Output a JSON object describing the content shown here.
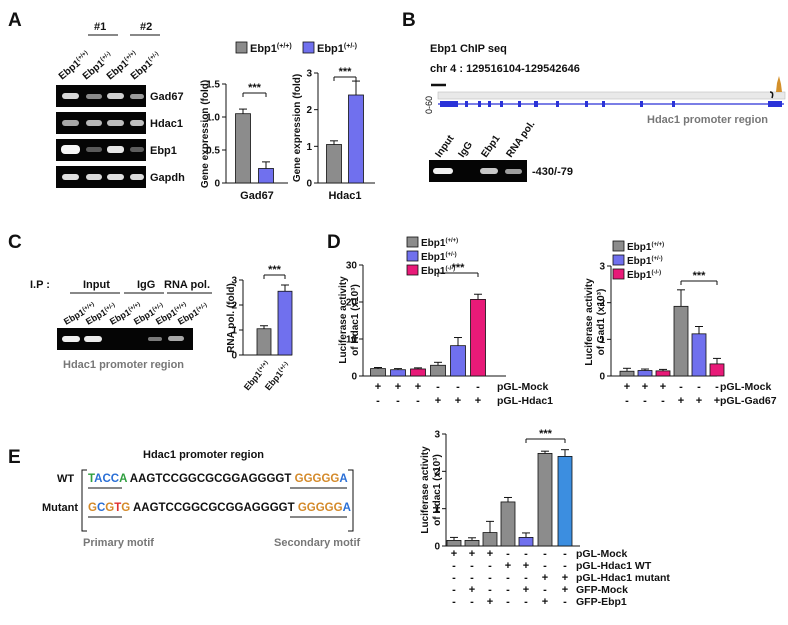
{
  "panels": {
    "A": "A",
    "B": "B",
    "C": "C",
    "D": "D",
    "E": "E"
  },
  "colors": {
    "grey": "#8c8c8c",
    "blue": "#7070ee",
    "pink": "#e81a78",
    "lightblue": "#3c8ee0",
    "gel": "#050505",
    "band": "#ffffff"
  },
  "panelA": {
    "groups": [
      "#1",
      "#2"
    ],
    "lanes": [
      "Ebp1(+/+)",
      "Ebp1(+/-)",
      "Ebp1(+/+)",
      "Ebp1(+/-)"
    ],
    "lane_main": [
      "Ebp1",
      "Ebp1",
      "Ebp1",
      "Ebp1"
    ],
    "lane_sup": [
      "(+/+)",
      "(+/-)",
      "(+/+)",
      "(+/-)"
    ],
    "blots": [
      "Gad67",
      "Hdac1",
      "Ebp1",
      "Gapdh"
    ],
    "legend": [
      {
        "name": "Ebp1",
        "sup": "(+/+)"
      },
      {
        "name": "Ebp1",
        "sup": "(+/-)"
      }
    ],
    "sig": "***"
  },
  "panelB": {
    "title": "Ebp1 ChIP seq",
    "locus": "chr 4 : 129516104-129542646",
    "range": "0-60",
    "region": "Hdac1 promoter region",
    "lanes": [
      "Input",
      "IgG",
      "Ebp1",
      "RNA pol."
    ],
    "amplicon": "-430/-79"
  },
  "panelC": {
    "ip": "I.P :",
    "groups": [
      "Input",
      "IgG",
      "RNA pol."
    ],
    "lane_main": [
      "Ebp1",
      "Ebp1",
      "Ebp1",
      "Ebp1",
      "Ebp1",
      "Ebp1"
    ],
    "lane_sup": [
      "(+/+)",
      "(+/-)",
      "(+/+)",
      "(+/-)",
      "(+/+)",
      "(+/-)"
    ],
    "region": "Hdac1 promoter region",
    "sig": "***"
  },
  "panelD": {
    "legend": [
      {
        "name": "Ebp1",
        "sup": "(+/+)"
      },
      {
        "name": "Ebp1",
        "sup": "(+/-)"
      },
      {
        "name": "Ebp1",
        "sup": "(-/-)"
      }
    ],
    "left_rows": [
      {
        "label": "pGL-Mock",
        "signs": [
          "+",
          "+",
          "+",
          "-",
          "-",
          "-"
        ]
      },
      {
        "label": "pGL-Hdac1",
        "signs": [
          "-",
          "-",
          "-",
          "+",
          "+",
          "+"
        ]
      }
    ],
    "right_rows": [
      {
        "label": "pGL-Mock",
        "signs": [
          "+",
          "+",
          "+",
          "-",
          "-",
          "-"
        ]
      },
      {
        "label": "pGL-Gad67",
        "signs": [
          "-",
          "-",
          "-",
          "+",
          "+",
          "+"
        ]
      }
    ],
    "sig": "***"
  },
  "panelE": {
    "title": "Hdac1 promoter region",
    "wt_label": "WT",
    "mut_label": "Mutant",
    "wt_motif": [
      "T",
      "A",
      "C",
      "C",
      "A"
    ],
    "mut_motif": [
      "G",
      "C",
      "G",
      "T",
      "G"
    ],
    "middle": " AAGTCCGGCGCGGAGGGGT ",
    "secondary": [
      "G",
      "G",
      "G",
      "G",
      "G",
      "A"
    ],
    "primary_label": "Primary motif",
    "secondary_label": "Secondary motif",
    "rows": [
      {
        "label": "pGL-Mock",
        "signs": [
          "+",
          "+",
          "+",
          "-",
          "-",
          "-",
          "-"
        ]
      },
      {
        "label": "pGL-Hdac1 WT",
        "signs": [
          "-",
          "-",
          "-",
          "+",
          "+",
          "-",
          "-"
        ]
      },
      {
        "label": "pGL-Hdac1 mutant",
        "signs": [
          "-",
          "-",
          "-",
          "-",
          "-",
          "+",
          "+"
        ]
      },
      {
        "label": "GFP-Mock",
        "signs": [
          "-",
          "+",
          "-",
          "-",
          "+",
          "-",
          "+"
        ]
      },
      {
        "label": "GFP-Ebp1",
        "signs": [
          "-",
          "-",
          "+",
          "-",
          "-",
          "+",
          "-"
        ]
      }
    ],
    "sig": "***"
  },
  "chart_data": [
    {
      "id": "A-Gad67",
      "type": "bar",
      "categories": [
        "Ebp1(+/+)",
        "Ebp1(+/-)"
      ],
      "values": [
        1.05,
        0.22
      ],
      "errors": [
        0.07,
        0.1
      ],
      "ylabel": "Gene expression (fold)",
      "xlabel": "Gad67",
      "ylim": [
        0,
        1.5
      ],
      "ticks": [
        "0",
        "0.5",
        "1.0",
        "1.5"
      ],
      "colors": [
        "#8c8c8c",
        "#7070ee"
      ]
    },
    {
      "id": "A-Hdac1",
      "type": "bar",
      "categories": [
        "Ebp1(+/+)",
        "Ebp1(+/-)"
      ],
      "values": [
        1.05,
        2.4
      ],
      "errors": [
        0.1,
        0.38
      ],
      "ylabel": "Gene expression (fold)",
      "xlabel": "Hdac1",
      "ylim": [
        0,
        3
      ],
      "ticks": [
        "0",
        "1",
        "2",
        "3"
      ],
      "colors": [
        "#8c8c8c",
        "#7070ee"
      ]
    },
    {
      "id": "C",
      "type": "bar",
      "categories": [
        "Ebp1(+/+)",
        "Ebp1(+/-)"
      ],
      "values": [
        1.05,
        2.55
      ],
      "errors": [
        0.12,
        0.25
      ],
      "ylabel": "RNA pol. (fold)",
      "xlabel": "",
      "ylim": [
        0,
        3
      ],
      "ticks": [
        "0",
        "1",
        "2",
        "3"
      ],
      "colors": [
        "#8c8c8c",
        "#7070ee"
      ]
    },
    {
      "id": "D-Hdac1",
      "type": "bar",
      "categories": [
        "1",
        "2",
        "3",
        "4",
        "5",
        "6"
      ],
      "values": [
        2.0,
        1.7,
        1.9,
        2.9,
        8.2,
        20.7
      ],
      "errors": [
        0.3,
        0.3,
        0.3,
        0.8,
        2.2,
        1.4
      ],
      "ylabel": "Luciferase activity of Hdac1 (x10³)",
      "xlabel": "",
      "ylim": [
        0,
        30
      ],
      "ticks": [
        "0",
        "10",
        "20",
        "30"
      ],
      "colors": [
        "#8c8c8c",
        "#7070ee",
        "#e81a78",
        "#8c8c8c",
        "#7070ee",
        "#e81a78"
      ]
    },
    {
      "id": "D-Gad1",
      "type": "bar",
      "categories": [
        "1",
        "2",
        "3",
        "4",
        "5",
        "6"
      ],
      "values": [
        0.13,
        0.15,
        0.14,
        1.9,
        1.15,
        0.33
      ],
      "errors": [
        0.08,
        0.04,
        0.04,
        0.45,
        0.2,
        0.15
      ],
      "ylabel": "Luciferase activity of Gad1 (x10³)",
      "xlabel": "",
      "ylim": [
        0,
        3
      ],
      "ticks": [
        "0",
        "1",
        "2",
        "3"
      ],
      "colors": [
        "#8c8c8c",
        "#7070ee",
        "#e81a78",
        "#8c8c8c",
        "#7070ee",
        "#e81a78"
      ]
    },
    {
      "id": "E",
      "type": "bar",
      "categories": [
        "1",
        "2",
        "3",
        "4",
        "5",
        "6",
        "7"
      ],
      "values": [
        0.15,
        0.15,
        0.36,
        1.18,
        0.23,
        2.48,
        2.4
      ],
      "errors": [
        0.08,
        0.07,
        0.3,
        0.12,
        0.12,
        0.06,
        0.18
      ],
      "ylabel": "Luciferase activity of Hdac1 (x10³)",
      "xlabel": "",
      "ylim": [
        0,
        3
      ],
      "ticks": [
        "0",
        "1",
        "2",
        "3"
      ],
      "colors": [
        "#8c8c8c",
        "#8c8c8c",
        "#8c8c8c",
        "#8c8c8c",
        "#7070ee",
        "#8c8c8c",
        "#3c8ee0"
      ]
    }
  ]
}
